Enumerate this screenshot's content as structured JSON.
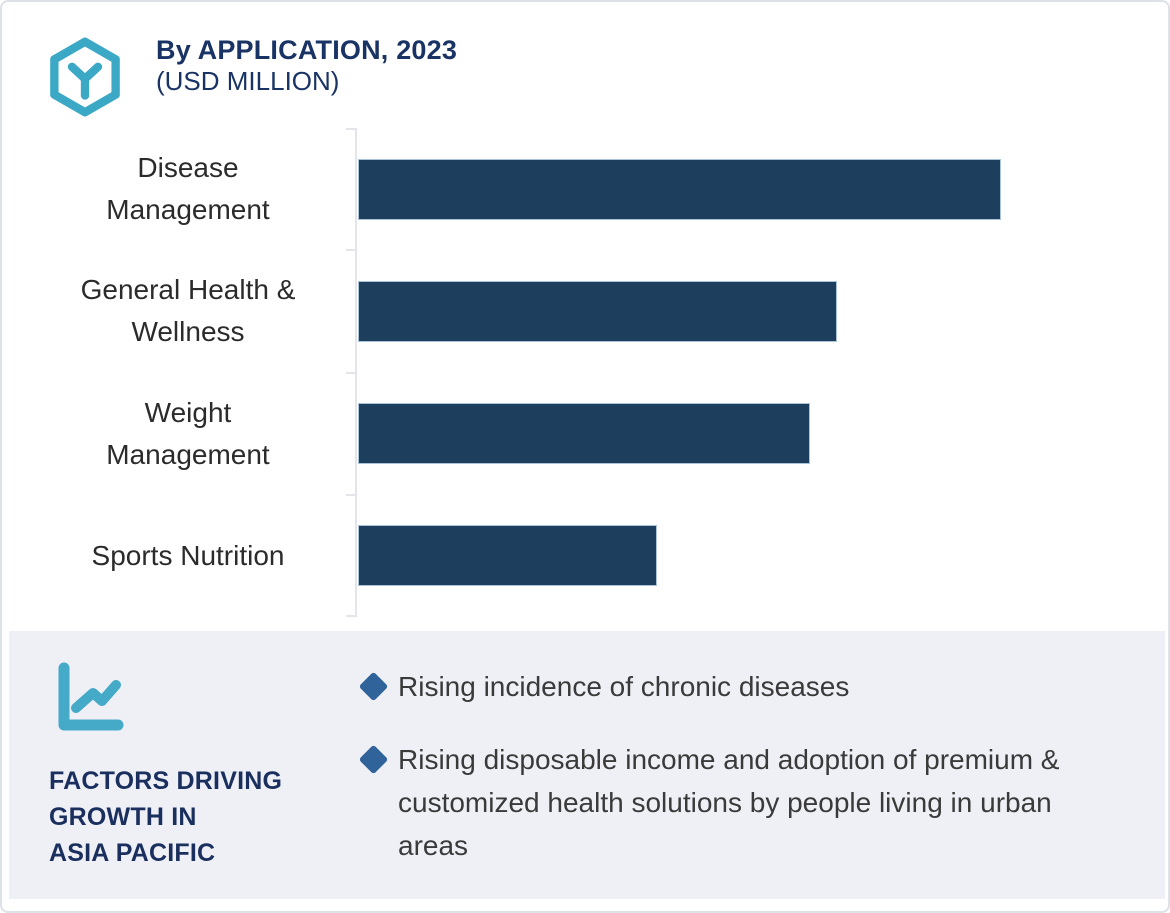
{
  "header": {
    "title": "By APPLICATION, 2023",
    "subtitle": "(USD MILLION)",
    "logo_icon": "hexagon-y-logo",
    "title_color": "#1A3365",
    "accent_color": "#3BA8C6"
  },
  "chart_data": {
    "type": "bar",
    "orientation": "horizontal",
    "title": "By APPLICATION, 2023 (USD MILLION)",
    "categories": [
      "Disease Management",
      "General Health & Wellness",
      "Weight Management",
      "Sports Nutrition"
    ],
    "category_label_lines": [
      "Disease\nManagement",
      "General Health &\nWellness",
      "Weight\nManagement",
      "Sports Nutrition"
    ],
    "values_relative": [
      100,
      74.6,
      70.4,
      46.6
    ],
    "value_axis_labels_visible": false,
    "xlabel": "",
    "ylabel": "",
    "xlim": [
      0,
      122
    ],
    "grid": false,
    "legend": false,
    "bar_color": "#1E3E5E",
    "axis_color": "#E4E4EA"
  },
  "factors": {
    "icon": "line-chart-icon",
    "heading": "FACTORS DRIVING\nGROWTH IN\nASIA PACIFIC",
    "heading_color": "#1A2F5E",
    "panel_bg": "#EEF0F6",
    "bullet_marker": "diamond",
    "bullet_color": "#2F6399",
    "bullets": [
      "Rising incidence of chronic diseases",
      "Rising disposable income and adoption of premium & customized health solutions by people living in urban areas"
    ]
  }
}
